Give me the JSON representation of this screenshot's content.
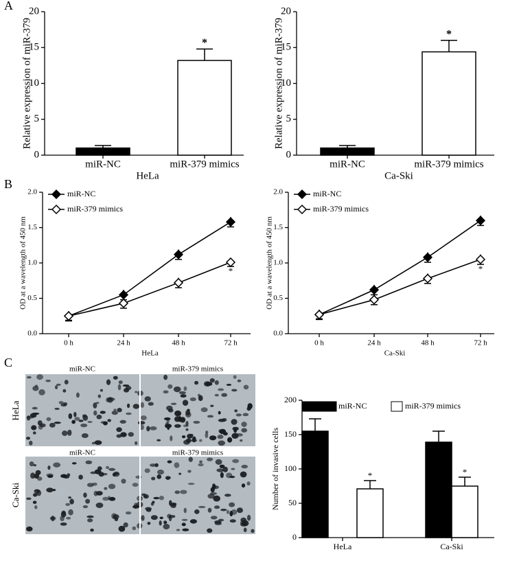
{
  "panel_labels": [
    "A",
    "B",
    "C"
  ],
  "images": {
    "columns": [
      "miR-NC",
      "miR-379 mimics"
    ],
    "rows": [
      "HeLa",
      "Ca-Ski"
    ]
  },
  "chart_data": [
    {
      "type": "bar",
      "ylabel": "Relative expression of miR-379",
      "xlabel": "HeLa",
      "annotation": "*",
      "categories": [
        "miR-NC",
        "miR-379 mimics"
      ],
      "values": [
        1,
        13.2
      ],
      "errors": [
        0.35,
        1.6
      ],
      "colors": [
        "#000000",
        "#ffffff"
      ],
      "ylim": [
        0,
        20
      ],
      "yticks": [
        0,
        5,
        10,
        15,
        20
      ]
    },
    {
      "type": "bar",
      "ylabel": "Relative expression of miR-379",
      "xlabel": "Ca-Ski",
      "annotation": "*",
      "categories": [
        "miR-NC",
        "miR-379 mimics"
      ],
      "values": [
        1,
        14.4
      ],
      "errors": [
        0.35,
        1.6
      ],
      "colors": [
        "#000000",
        "#ffffff"
      ],
      "ylim": [
        0,
        20
      ],
      "yticks": [
        0,
        5,
        10,
        15,
        20
      ]
    },
    {
      "type": "line",
      "ylabel": "OD at a wavelength of 450 nm",
      "xlabel": "HeLa",
      "annotation": "*",
      "categories": [
        "0 h",
        "24 h",
        "48 h",
        "72 h"
      ],
      "series": [
        {
          "name": "miR-NC",
          "color": "#000000",
          "values": [
            0.25,
            0.55,
            1.12,
            1.58
          ],
          "errors": [
            0.07,
            0.07,
            0.07,
            0.07
          ]
        },
        {
          "name": "miR-379 mimics",
          "color": "#ffffff",
          "values": [
            0.25,
            0.43,
            0.72,
            1.01
          ],
          "errors": [
            0.06,
            0.07,
            0.07,
            0.06
          ]
        }
      ],
      "ylim": [
        0,
        2
      ],
      "yticks": [
        {
          "value": 0,
          "label": "0.0"
        },
        {
          "value": 0.5,
          "label": "0.5"
        },
        {
          "value": 1,
          "label": "1.0"
        },
        {
          "value": 1.5,
          "label": "1.5"
        },
        {
          "value": 2,
          "label": "2.0"
        }
      ]
    },
    {
      "type": "line",
      "ylabel": "OD at a wavelength of 450 nm",
      "xlabel": "Ca-Ski",
      "annotation": "*",
      "categories": [
        "0 h",
        "24 h",
        "48 h",
        "72 h"
      ],
      "series": [
        {
          "name": "miR-NC",
          "color": "#000000",
          "values": [
            0.27,
            0.62,
            1.08,
            1.6
          ],
          "errors": [
            0.07,
            0.07,
            0.07,
            0.07
          ]
        },
        {
          "name": "miR-379 mimics",
          "color": "#ffffff",
          "values": [
            0.27,
            0.48,
            0.78,
            1.05
          ],
          "errors": [
            0.06,
            0.07,
            0.07,
            0.07
          ]
        }
      ],
      "ylim": [
        0,
        2
      ],
      "yticks": [
        {
          "value": 0,
          "label": "0.0"
        },
        {
          "value": 0.5,
          "label": "0.5"
        },
        {
          "value": 1,
          "label": "1.0"
        },
        {
          "value": 1.5,
          "label": "1.5"
        },
        {
          "value": 2,
          "label": "2.0"
        }
      ]
    },
    {
      "type": "groupbar",
      "ylabel": "Number of invasive cells",
      "annotation": "*",
      "categories": [
        "HeLa",
        "Ca-Ski"
      ],
      "series": [
        {
          "name": "miR-NC",
          "color": "#000000",
          "values": [
            155,
            139
          ],
          "errors": [
            18,
            16
          ]
        },
        {
          "name": "miR-379 mimics",
          "color": "#ffffff",
          "values": [
            71,
            75
          ],
          "errors": [
            12,
            13
          ]
        }
      ],
      "ylim": [
        0,
        200
      ],
      "yticks": [
        0,
        50,
        100,
        150,
        200
      ]
    }
  ]
}
